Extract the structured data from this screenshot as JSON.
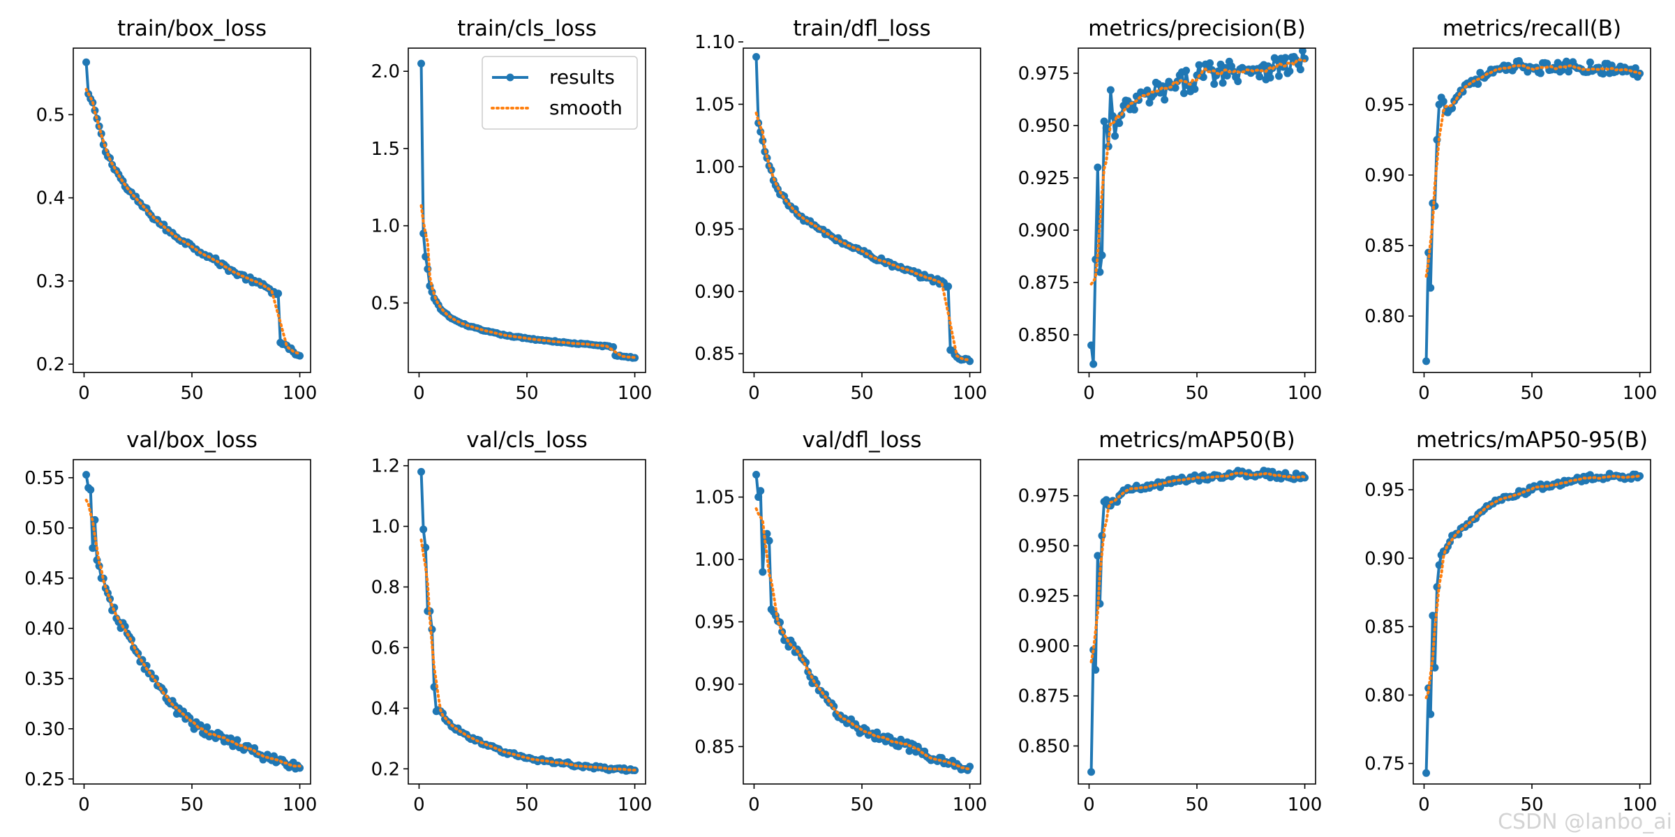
{
  "figure": {
    "colors": {
      "results": "#1f77b4",
      "smooth": "#ff7f0e",
      "axis": "#000000",
      "background": "#ffffff"
    },
    "legend": {
      "entries": [
        "results",
        "smooth"
      ],
      "panel": "train/cls_loss",
      "placement": "top-right"
    },
    "watermark": "CSDN @lanbo_ai"
  },
  "chart_data": [
    {
      "type": "line",
      "title": "train/box_loss",
      "xlabel": "",
      "ylabel": "",
      "xlim": [
        -5,
        105
      ],
      "ylim": [
        0.19,
        0.58
      ],
      "xticks": [
        0,
        50,
        100
      ],
      "yticks": [
        0.2,
        0.3,
        0.4,
        0.5
      ],
      "yticklabels": [
        "0.2",
        "0.3",
        "0.4",
        "0.5"
      ],
      "curve": {
        "anchors": [
          [
            1,
            0.563
          ],
          [
            2,
            0.525
          ],
          [
            5,
            0.505
          ],
          [
            10,
            0.455
          ],
          [
            20,
            0.41
          ],
          [
            30,
            0.382
          ],
          [
            40,
            0.358
          ],
          [
            50,
            0.342
          ],
          [
            60,
            0.326
          ],
          [
            70,
            0.31
          ],
          [
            80,
            0.298
          ],
          [
            88,
            0.287
          ],
          [
            90,
            0.285
          ],
          [
            91,
            0.226
          ],
          [
            95,
            0.218
          ],
          [
            100,
            0.21
          ]
        ],
        "noise": 0.003
      }
    },
    {
      "type": "line",
      "title": "train/cls_loss",
      "xlabel": "",
      "ylabel": "",
      "xlim": [
        -5,
        105
      ],
      "ylim": [
        0.05,
        2.15
      ],
      "xticks": [
        0,
        50,
        100
      ],
      "yticks": [
        0.5,
        1.0,
        1.5,
        2.0
      ],
      "yticklabels": [
        "0.5",
        "1.0",
        "1.5",
        "2.0"
      ],
      "curve": {
        "anchors": [
          [
            1,
            2.05
          ],
          [
            2,
            0.95
          ],
          [
            3,
            0.8
          ],
          [
            4,
            0.72
          ],
          [
            5,
            0.61
          ],
          [
            7,
            0.53
          ],
          [
            10,
            0.46
          ],
          [
            15,
            0.4
          ],
          [
            20,
            0.365
          ],
          [
            30,
            0.32
          ],
          [
            40,
            0.29
          ],
          [
            50,
            0.27
          ],
          [
            60,
            0.255
          ],
          [
            70,
            0.24
          ],
          [
            80,
            0.23
          ],
          [
            90,
            0.215
          ],
          [
            91,
            0.16
          ],
          [
            100,
            0.145
          ]
        ],
        "noise": 0.004
      }
    },
    {
      "type": "line",
      "title": "train/dfl_loss",
      "xlabel": "",
      "ylabel": "",
      "xlim": [
        -5,
        105
      ],
      "ylim": [
        0.835,
        1.095
      ],
      "xticks": [
        0,
        50,
        100
      ],
      "yticks": [
        0.85,
        0.9,
        0.95,
        1.0,
        1.05,
        1.1
      ],
      "yticklabels": [
        "0.85",
        "0.90",
        "0.95",
        "1.00",
        "1.05",
        "1.10"
      ],
      "curve": {
        "anchors": [
          [
            1,
            1.088
          ],
          [
            2,
            1.035
          ],
          [
            3,
            1.028
          ],
          [
            5,
            1.012
          ],
          [
            10,
            0.985
          ],
          [
            15,
            0.972
          ],
          [
            20,
            0.962
          ],
          [
            30,
            0.95
          ],
          [
            40,
            0.94
          ],
          [
            50,
            0.932
          ],
          [
            60,
            0.924
          ],
          [
            70,
            0.917
          ],
          [
            80,
            0.911
          ],
          [
            88,
            0.907
          ],
          [
            90,
            0.904
          ],
          [
            91,
            0.853
          ],
          [
            95,
            0.846
          ],
          [
            100,
            0.844
          ]
        ],
        "noise": 0.002
      }
    },
    {
      "type": "line",
      "title": "metrics/precision(B)",
      "xlabel": "",
      "ylabel": "",
      "xlim": [
        -5,
        105
      ],
      "ylim": [
        0.832,
        0.987
      ],
      "xticks": [
        0,
        50,
        100
      ],
      "yticks": [
        0.85,
        0.875,
        0.9,
        0.925,
        0.95,
        0.975
      ],
      "yticklabels": [
        "0.850",
        "0.875",
        "0.900",
        "0.925",
        "0.950",
        "0.975"
      ],
      "curve": {
        "anchors": [
          [
            1,
            0.845
          ],
          [
            2,
            0.836
          ],
          [
            3,
            0.886
          ],
          [
            4,
            0.93
          ],
          [
            5,
            0.88
          ],
          [
            6,
            0.888
          ],
          [
            7,
            0.952
          ],
          [
            9,
            0.94
          ],
          [
            10,
            0.967
          ],
          [
            12,
            0.945
          ],
          [
            15,
            0.955
          ],
          [
            20,
            0.96
          ],
          [
            30,
            0.965
          ],
          [
            40,
            0.968
          ],
          [
            50,
            0.974
          ],
          [
            60,
            0.976
          ],
          [
            70,
            0.977
          ],
          [
            80,
            0.978
          ],
          [
            90,
            0.978
          ],
          [
            100,
            0.982
          ]
        ],
        "noise": 0.006
      }
    },
    {
      "type": "line",
      "title": "metrics/recall(B)",
      "xlabel": "",
      "ylabel": "",
      "xlim": [
        -5,
        105
      ],
      "ylim": [
        0.76,
        0.99
      ],
      "xticks": [
        0,
        50,
        100
      ],
      "yticks": [
        0.8,
        0.85,
        0.9,
        0.95
      ],
      "yticklabels": [
        "0.80",
        "0.85",
        "0.90",
        "0.95"
      ],
      "curve": {
        "anchors": [
          [
            1,
            0.768
          ],
          [
            2,
            0.845
          ],
          [
            3,
            0.82
          ],
          [
            4,
            0.88
          ],
          [
            5,
            0.878
          ],
          [
            6,
            0.925
          ],
          [
            7,
            0.95
          ],
          [
            8,
            0.955
          ],
          [
            10,
            0.945
          ],
          [
            15,
            0.955
          ],
          [
            20,
            0.965
          ],
          [
            30,
            0.972
          ],
          [
            40,
            0.975
          ],
          [
            45,
            0.978
          ],
          [
            50,
            0.976
          ],
          [
            60,
            0.976
          ],
          [
            70,
            0.977
          ],
          [
            80,
            0.976
          ],
          [
            90,
            0.975
          ],
          [
            100,
            0.972
          ]
        ],
        "noise": 0.004
      }
    },
    {
      "type": "line",
      "title": "val/box_loss",
      "xlabel": "",
      "ylabel": "",
      "xlim": [
        -5,
        105
      ],
      "ylim": [
        0.245,
        0.568
      ],
      "xticks": [
        0,
        50,
        100
      ],
      "yticks": [
        0.25,
        0.3,
        0.35,
        0.4,
        0.45,
        0.5,
        0.55
      ],
      "yticklabels": [
        "0.25",
        "0.30",
        "0.35",
        "0.40",
        "0.45",
        "0.50",
        "0.55"
      ],
      "curve": {
        "anchors": [
          [
            1,
            0.553
          ],
          [
            2,
            0.54
          ],
          [
            3,
            0.538
          ],
          [
            4,
            0.48
          ],
          [
            5,
            0.508
          ],
          [
            6,
            0.468
          ],
          [
            8,
            0.45
          ],
          [
            10,
            0.44
          ],
          [
            15,
            0.41
          ],
          [
            20,
            0.395
          ],
          [
            25,
            0.375
          ],
          [
            30,
            0.355
          ],
          [
            35,
            0.342
          ],
          [
            40,
            0.325
          ],
          [
            45,
            0.315
          ],
          [
            50,
            0.305
          ],
          [
            60,
            0.293
          ],
          [
            70,
            0.287
          ],
          [
            80,
            0.275
          ],
          [
            90,
            0.268
          ],
          [
            100,
            0.261
          ]
        ],
        "noise": 0.005
      }
    },
    {
      "type": "line",
      "title": "val/cls_loss",
      "xlabel": "",
      "ylabel": "",
      "xlim": [
        -5,
        105
      ],
      "ylim": [
        0.15,
        1.22
      ],
      "xticks": [
        0,
        50,
        100
      ],
      "yticks": [
        0.2,
        0.4,
        0.6,
        0.8,
        1.0,
        1.2
      ],
      "yticklabels": [
        "0.2",
        "0.4",
        "0.6",
        "0.8",
        "1.0",
        "1.2"
      ],
      "curve": {
        "anchors": [
          [
            1,
            1.18
          ],
          [
            2,
            0.99
          ],
          [
            3,
            0.93
          ],
          [
            4,
            0.72
          ],
          [
            5,
            0.72
          ],
          [
            6,
            0.66
          ],
          [
            7,
            0.47
          ],
          [
            8,
            0.39
          ],
          [
            10,
            0.39
          ],
          [
            15,
            0.34
          ],
          [
            20,
            0.32
          ],
          [
            30,
            0.28
          ],
          [
            40,
            0.255
          ],
          [
            50,
            0.235
          ],
          [
            60,
            0.225
          ],
          [
            70,
            0.215
          ],
          [
            80,
            0.205
          ],
          [
            90,
            0.198
          ],
          [
            100,
            0.195
          ]
        ],
        "noise": 0.006
      }
    },
    {
      "type": "line",
      "title": "val/dfl_loss",
      "xlabel": "",
      "ylabel": "",
      "xlim": [
        -5,
        105
      ],
      "ylim": [
        0.82,
        1.08
      ],
      "xticks": [
        0,
        50,
        100
      ],
      "yticks": [
        0.85,
        0.9,
        0.95,
        1.0,
        1.05
      ],
      "yticklabels": [
        "0.85",
        "0.90",
        "0.95",
        "1.00",
        "1.05"
      ],
      "curve": {
        "anchors": [
          [
            1,
            1.068
          ],
          [
            2,
            1.05
          ],
          [
            3,
            1.055
          ],
          [
            4,
            0.99
          ],
          [
            5,
            1.02
          ],
          [
            7,
            1.015
          ],
          [
            8,
            0.96
          ],
          [
            10,
            0.955
          ],
          [
            15,
            0.935
          ],
          [
            20,
            0.928
          ],
          [
            25,
            0.91
          ],
          [
            30,
            0.895
          ],
          [
            35,
            0.885
          ],
          [
            40,
            0.875
          ],
          [
            50,
            0.862
          ],
          [
            60,
            0.858
          ],
          [
            70,
            0.852
          ],
          [
            80,
            0.842
          ],
          [
            90,
            0.836
          ],
          [
            100,
            0.834
          ]
        ],
        "noise": 0.004
      }
    },
    {
      "type": "line",
      "title": "metrics/mAP50(B)",
      "xlabel": "",
      "ylabel": "",
      "xlim": [
        -5,
        105
      ],
      "ylim": [
        0.831,
        0.993
      ],
      "xticks": [
        0,
        50,
        100
      ],
      "yticks": [
        0.85,
        0.875,
        0.9,
        0.925,
        0.95,
        0.975
      ],
      "yticklabels": [
        "0.850",
        "0.875",
        "0.900",
        "0.925",
        "0.950",
        "0.975"
      ],
      "curve": {
        "anchors": [
          [
            1,
            0.837
          ],
          [
            2,
            0.898
          ],
          [
            3,
            0.888
          ],
          [
            4,
            0.945
          ],
          [
            5,
            0.921
          ],
          [
            6,
            0.955
          ],
          [
            7,
            0.972
          ],
          [
            10,
            0.97
          ],
          [
            15,
            0.976
          ],
          [
            20,
            0.978
          ],
          [
            30,
            0.98
          ],
          [
            40,
            0.982
          ],
          [
            50,
            0.984
          ],
          [
            60,
            0.985
          ],
          [
            70,
            0.986
          ],
          [
            80,
            0.986
          ],
          [
            90,
            0.985
          ],
          [
            100,
            0.984
          ]
        ],
        "noise": 0.0018
      }
    },
    {
      "type": "line",
      "title": "metrics/mAP50-95(B)",
      "xlabel": "",
      "ylabel": "",
      "xlim": [
        -5,
        105
      ],
      "ylim": [
        0.735,
        0.972
      ],
      "xticks": [
        0,
        50,
        100
      ],
      "yticks": [
        0.75,
        0.8,
        0.85,
        0.9,
        0.95
      ],
      "yticklabels": [
        "0.75",
        "0.80",
        "0.85",
        "0.90",
        "0.95"
      ],
      "curve": {
        "anchors": [
          [
            1,
            0.743
          ],
          [
            2,
            0.805
          ],
          [
            3,
            0.786
          ],
          [
            4,
            0.858
          ],
          [
            5,
            0.82
          ],
          [
            6,
            0.879
          ],
          [
            7,
            0.895
          ],
          [
            9,
            0.905
          ],
          [
            12,
            0.912
          ],
          [
            15,
            0.918
          ],
          [
            20,
            0.925
          ],
          [
            30,
            0.938
          ],
          [
            40,
            0.945
          ],
          [
            50,
            0.95
          ],
          [
            60,
            0.954
          ],
          [
            70,
            0.957
          ],
          [
            80,
            0.959
          ],
          [
            90,
            0.96
          ],
          [
            100,
            0.96
          ]
        ],
        "noise": 0.0025
      }
    }
  ]
}
